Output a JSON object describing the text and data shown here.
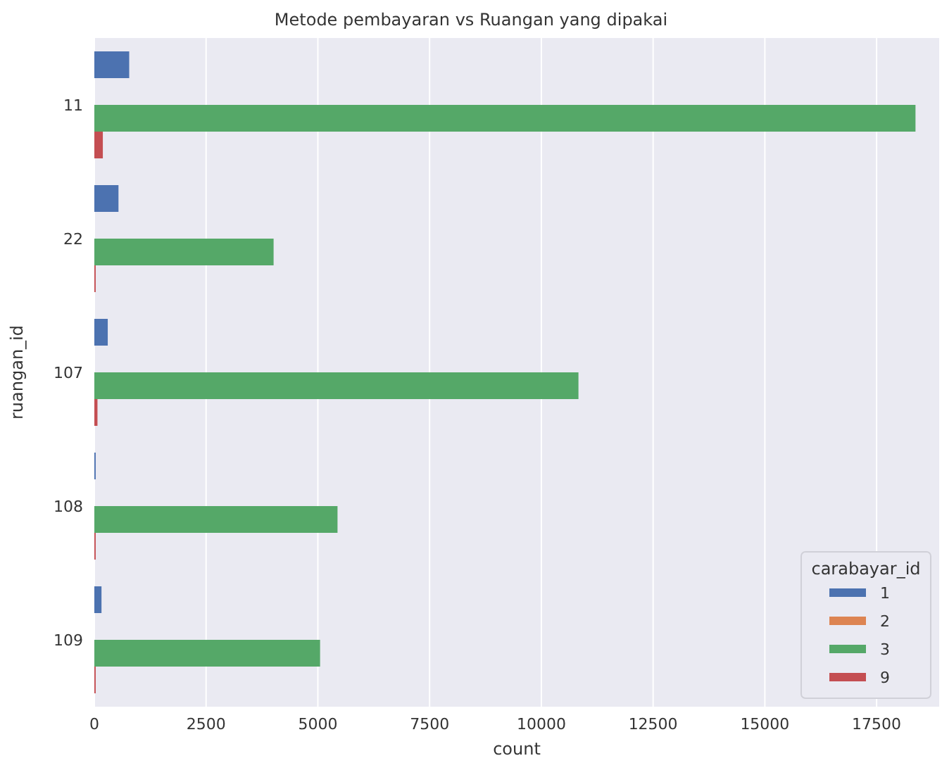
{
  "chart_data": {
    "type": "bar",
    "orientation": "horizontal",
    "title": "Metode pembayaran vs Ruangan yang dipakai",
    "xlabel": "count",
    "ylabel": "ruangan_id",
    "legend_title": "carabayar_id",
    "categories": [
      "11",
      "22",
      "107",
      "108",
      "109"
    ],
    "series": [
      {
        "name": "1",
        "color": "#4c72b0",
        "values": [
          780,
          540,
          300,
          30,
          160
        ]
      },
      {
        "name": "2",
        "color": "#dd8452",
        "values": [
          0,
          0,
          0,
          0,
          0
        ]
      },
      {
        "name": "3",
        "color": "#55a868",
        "values": [
          18370,
          4010,
          10830,
          5440,
          5050
        ]
      },
      {
        "name": "9",
        "color": "#c44e52",
        "values": [
          190,
          30,
          70,
          30,
          30
        ]
      }
    ],
    "xlim": [
      0,
      18900
    ],
    "xticks": [
      0,
      2500,
      5000,
      7500,
      10000,
      12500,
      15000,
      17500
    ],
    "grid": "x",
    "legend": "bottom right"
  }
}
